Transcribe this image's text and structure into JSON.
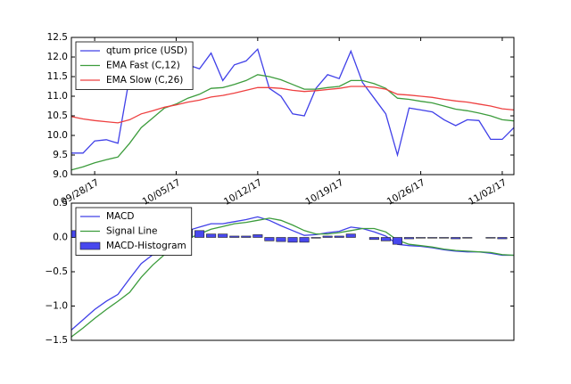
{
  "chart_data": [
    {
      "type": "line",
      "x": [
        "2017-09-26",
        "2017-09-27",
        "2017-09-28",
        "2017-09-29",
        "2017-09-30",
        "2017-10-01",
        "2017-10-02",
        "2017-10-03",
        "2017-10-04",
        "2017-10-05",
        "2017-10-06",
        "2017-10-07",
        "2017-10-08",
        "2017-10-09",
        "2017-10-10",
        "2017-10-11",
        "2017-10-12",
        "2017-10-13",
        "2017-10-14",
        "2017-10-15",
        "2017-10-16",
        "2017-10-17",
        "2017-10-18",
        "2017-10-19",
        "2017-10-20",
        "2017-10-21",
        "2017-10-22",
        "2017-10-23",
        "2017-10-24",
        "2017-10-25",
        "2017-10-26",
        "2017-10-27",
        "2017-10-28",
        "2017-10-29",
        "2017-10-30",
        "2017-10-31",
        "2017-11-01",
        "2017-11-02",
        "2017-11-03"
      ],
      "xlim": [
        "2017-09-26",
        "2017-11-03"
      ],
      "xticks": [
        {
          "value": "2017-09-28",
          "label": "09/28/17"
        },
        {
          "value": "2017-10-05",
          "label": "10/05/17"
        },
        {
          "value": "2017-10-12",
          "label": "10/12/17"
        },
        {
          "value": "2017-10-19",
          "label": "10/19/17"
        },
        {
          "value": "2017-10-26",
          "label": "10/26/17"
        },
        {
          "value": "2017-11-02",
          "label": "11/02/17"
        }
      ],
      "ylim": [
        9,
        12.5
      ],
      "yticks": [
        {
          "value": 9,
          "label": "9.0"
        },
        9.5,
        {
          "value": 10,
          "label": "10.0"
        },
        10.5,
        {
          "value": 11,
          "label": "11.0"
        },
        11.5,
        {
          "value": 12,
          "label": "12.0"
        },
        12.5
      ],
      "legend": "upper left",
      "series": [
        {
          "name": "qtum price (USD)",
          "color": "#4040e8",
          "values": [
            9.55,
            9.55,
            9.86,
            9.89,
            9.8,
            11.5,
            11.6,
            11.8,
            11.7,
            11.9,
            11.8,
            11.7,
            12.1,
            11.4,
            11.8,
            11.9,
            12.2,
            11.2,
            11.0,
            10.55,
            10.5,
            11.2,
            11.55,
            11.45,
            12.15,
            11.35,
            10.95,
            10.55,
            9.5,
            10.7,
            10.65,
            10.6,
            10.4,
            10.25,
            10.4,
            10.38,
            9.9,
            9.9,
            10.2
          ]
        },
        {
          "name": "EMA Fast (C,12)",
          "color": "#3c9c3c",
          "values": [
            9.12,
            9.2,
            9.3,
            9.38,
            9.45,
            9.8,
            10.2,
            10.45,
            10.7,
            10.8,
            10.95,
            11.05,
            11.2,
            11.22,
            11.3,
            11.4,
            11.55,
            11.5,
            11.42,
            11.3,
            11.18,
            11.18,
            11.22,
            11.25,
            11.4,
            11.4,
            11.32,
            11.2,
            10.95,
            10.92,
            10.87,
            10.83,
            10.75,
            10.67,
            10.63,
            10.57,
            10.5,
            10.4,
            10.37
          ]
        },
        {
          "name": "EMA Slow (C,26)",
          "color": "#ee4040",
          "values": [
            10.48,
            10.42,
            10.38,
            10.35,
            10.32,
            10.4,
            10.55,
            10.63,
            10.72,
            10.78,
            10.85,
            10.9,
            10.98,
            11.02,
            11.08,
            11.15,
            11.22,
            11.22,
            11.2,
            11.15,
            11.12,
            11.14,
            11.17,
            11.2,
            11.25,
            11.25,
            11.23,
            11.18,
            11.05,
            11.03,
            11.0,
            10.97,
            10.92,
            10.88,
            10.85,
            10.8,
            10.75,
            10.68,
            10.65
          ]
        }
      ]
    },
    {
      "type": "line",
      "x": [
        "2017-09-26",
        "2017-09-27",
        "2017-09-28",
        "2017-09-29",
        "2017-09-30",
        "2017-10-01",
        "2017-10-02",
        "2017-10-03",
        "2017-10-04",
        "2017-10-05",
        "2017-10-06",
        "2017-10-07",
        "2017-10-08",
        "2017-10-09",
        "2017-10-10",
        "2017-10-11",
        "2017-10-12",
        "2017-10-13",
        "2017-10-14",
        "2017-10-15",
        "2017-10-16",
        "2017-10-17",
        "2017-10-18",
        "2017-10-19",
        "2017-10-20",
        "2017-10-21",
        "2017-10-22",
        "2017-10-23",
        "2017-10-24",
        "2017-10-25",
        "2017-10-26",
        "2017-10-27",
        "2017-10-28",
        "2017-10-29",
        "2017-10-30",
        "2017-10-31",
        "2017-11-01",
        "2017-11-02",
        "2017-11-03"
      ],
      "xlim": [
        "2017-09-26",
        "2017-11-03"
      ],
      "ylim": [
        -1.5,
        0.5
      ],
      "yticks": [
        {
          "value": -1.5,
          "label": "−1.5"
        },
        {
          "value": -1,
          "label": "−1.0"
        },
        {
          "value": -0.5,
          "label": "−0.5"
        },
        {
          "value": 0,
          "label": "0.0"
        },
        0.5
      ],
      "legend": "upper left",
      "series": [
        {
          "name": "MACD",
          "color": "#4040e8",
          "values": [
            -1.35,
            -1.2,
            -1.05,
            -0.93,
            -0.83,
            -0.6,
            -0.38,
            -0.25,
            -0.1,
            0.0,
            0.1,
            0.15,
            0.2,
            0.2,
            0.23,
            0.26,
            0.3,
            0.25,
            0.17,
            0.1,
            0.03,
            0.04,
            0.07,
            0.09,
            0.15,
            0.13,
            0.08,
            0.02,
            -0.1,
            -0.12,
            -0.13,
            -0.15,
            -0.18,
            -0.2,
            -0.21,
            -0.21,
            -0.23,
            -0.26,
            -0.26
          ]
        },
        {
          "name": "Signal Line",
          "color": "#3c9c3c",
          "values": [
            -1.45,
            -1.32,
            -1.18,
            -1.05,
            -0.93,
            -0.8,
            -0.58,
            -0.4,
            -0.25,
            -0.12,
            -0.02,
            0.05,
            0.12,
            0.16,
            0.2,
            0.22,
            0.25,
            0.28,
            0.25,
            0.18,
            0.1,
            0.05,
            0.05,
            0.07,
            0.1,
            0.13,
            0.13,
            0.08,
            -0.04,
            -0.1,
            -0.12,
            -0.14,
            -0.17,
            -0.19,
            -0.2,
            -0.21,
            -0.22,
            -0.25,
            -0.26
          ]
        },
        {
          "name": "MACD-Histogram",
          "type": "bar",
          "color": "#4848ee",
          "values": [
            0.1,
            0.12,
            0.13,
            0.12,
            0.1,
            0.2,
            0.2,
            0.15,
            0.15,
            0.12,
            0.12,
            0.1,
            0.05,
            0.05,
            0.02,
            0.02,
            0.04,
            -0.05,
            -0.06,
            -0.07,
            -0.07,
            -0.01,
            0.02,
            0.02,
            0.05,
            0,
            -0.03,
            -0.05,
            -0.1,
            -0.02,
            -0.01,
            -0.01,
            -0.01,
            -0.02,
            -0.01,
            0,
            -0.01,
            -0.02,
            0
          ]
        }
      ]
    }
  ]
}
